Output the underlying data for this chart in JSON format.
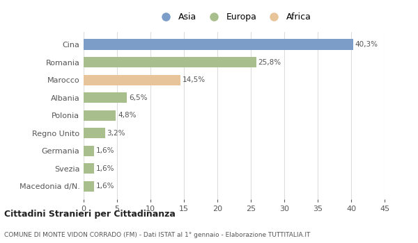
{
  "categories": [
    "Macedonia d/N.",
    "Svezia",
    "Germania",
    "Regno Unito",
    "Polonia",
    "Albania",
    "Marocco",
    "Romania",
    "Cina"
  ],
  "values": [
    1.6,
    1.6,
    1.6,
    3.2,
    4.8,
    6.5,
    14.5,
    25.8,
    40.3
  ],
  "labels": [
    "1,6%",
    "1,6%",
    "1,6%",
    "3,2%",
    "4,8%",
    "6,5%",
    "14,5%",
    "25,8%",
    "40,3%"
  ],
  "colors": [
    "#a8be8c",
    "#a8be8c",
    "#a8be8c",
    "#a8be8c",
    "#a8be8c",
    "#a8be8c",
    "#e8c49a",
    "#a8be8c",
    "#7b9dc8"
  ],
  "legend_labels": [
    "Asia",
    "Europa",
    "Africa"
  ],
  "legend_colors": [
    "#7b9dc8",
    "#a8be8c",
    "#e8c49a"
  ],
  "xlim": [
    0,
    45
  ],
  "xticks": [
    0,
    5,
    10,
    15,
    20,
    25,
    30,
    35,
    40,
    45
  ],
  "title": "Cittadini Stranieri per Cittadinanza",
  "subtitle": "COMUNE DI MONTE VIDON CORRADO (FM) - Dati ISTAT al 1° gennaio - Elaborazione TUTTITALIA.IT",
  "background_color": "#ffffff",
  "bar_height": 0.6,
  "grid_color": "#dddddd",
  "label_color": "#555555",
  "title_color": "#222222"
}
